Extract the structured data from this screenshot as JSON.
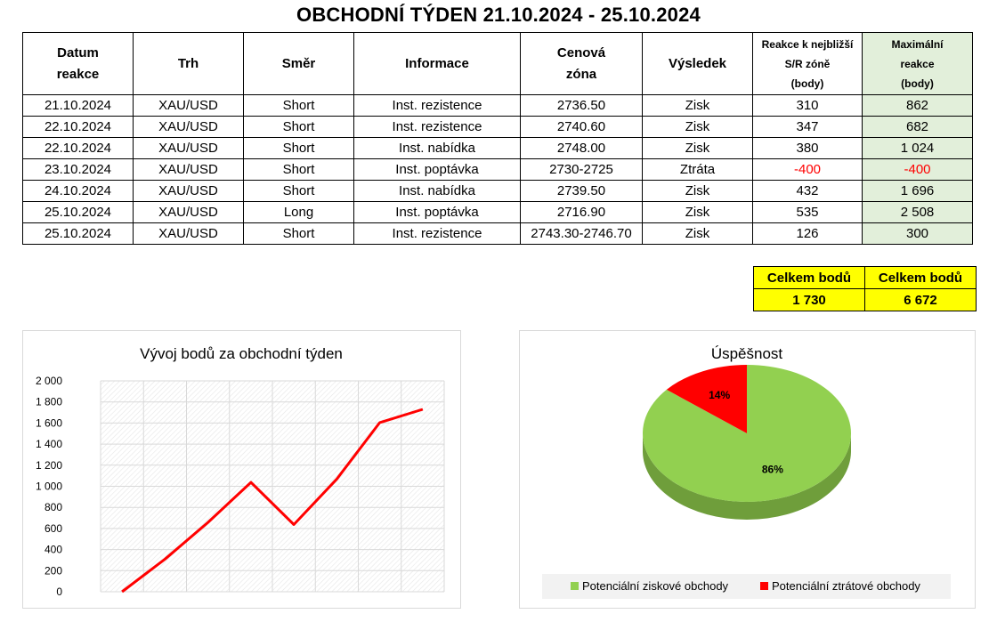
{
  "title": "OBCHODNÍ TÝDEN 21.10.2024 - 25.10.2024",
  "table": {
    "headers": {
      "date_1": "Datum",
      "date_2": "reakce",
      "market": "Trh",
      "direction": "Směr",
      "info": "Informace",
      "zone_1": "Cenová",
      "zone_2": "zóna",
      "result": "Výsledek",
      "reaction_1": "Reakce k nejbližší",
      "reaction_2": "S/R zóně",
      "reaction_3": "(body)",
      "max_1": "Maximální",
      "max_2": "reakce",
      "max_3": "(body)"
    },
    "rows": [
      {
        "date": "21.10.2024",
        "market": "XAU/USD",
        "direction": "Short",
        "info": "Inst. rezistence",
        "zone": "2736.50",
        "result": "Zisk",
        "reaction": "310",
        "max": "862"
      },
      {
        "date": "22.10.2024",
        "market": "XAU/USD",
        "direction": "Short",
        "info": "Inst. rezistence",
        "zone": "2740.60",
        "result": "Zisk",
        "reaction": "347",
        "max": "682"
      },
      {
        "date": "22.10.2024",
        "market": "XAU/USD",
        "direction": "Short",
        "info": "Inst. nabídka",
        "zone": "2748.00",
        "result": "Zisk",
        "reaction": "380",
        "max": "1 024"
      },
      {
        "date": "23.10.2024",
        "market": "XAU/USD",
        "direction": "Short",
        "info": "Inst. poptávka",
        "zone": "2730-2725",
        "result": "Ztráta",
        "reaction": "-400",
        "max": "-400"
      },
      {
        "date": "24.10.2024",
        "market": "XAU/USD",
        "direction": "Short",
        "info": "Inst. nabídka",
        "zone": "2739.50",
        "result": "Zisk",
        "reaction": "432",
        "max": "1 696"
      },
      {
        "date": "25.10.2024",
        "market": "XAU/USD",
        "direction": "Long",
        "info": "Inst. poptávka",
        "zone": "2716.90",
        "result": "Zisk",
        "reaction": "535",
        "max": "2 508"
      },
      {
        "date": "25.10.2024",
        "market": "XAU/USD",
        "direction": "Short",
        "info": "Inst. rezistence",
        "zone": "2743.30-2746.70",
        "result": "Zisk",
        "reaction": "126",
        "max": "300"
      }
    ]
  },
  "totals": {
    "label_1": "Celkem bodů",
    "value_1": "1 730",
    "label_2": "Celkem bodů",
    "value_2": "6 672"
  },
  "colors": {
    "line": "#ff0000",
    "pie_profit": "#92d050",
    "pie_loss": "#ff0000",
    "negative_text": "#ff0000",
    "max_column_fill": "#e2efda",
    "totals_fill": "#ffff00"
  },
  "chart_data": [
    {
      "type": "line",
      "title": "Vývoj bodů za obchodní týden",
      "x": [
        0,
        1,
        2,
        3,
        4,
        5,
        6,
        7
      ],
      "y": [
        0,
        310,
        657,
        1037,
        637,
        1069,
        1604,
        1730
      ],
      "ylim": [
        0,
        2000
      ],
      "yticks": [
        0,
        200,
        400,
        600,
        800,
        1000,
        1200,
        1400,
        1600,
        1800,
        2000
      ],
      "ytick_labels": [
        "0",
        "200",
        "400",
        "600",
        "800",
        "1 000",
        "1 200",
        "1 400",
        "1 600",
        "1 800",
        "2 000"
      ],
      "grid": true,
      "xlabel": "",
      "ylabel": ""
    },
    {
      "type": "pie",
      "title": "Úspěšnost",
      "categories": [
        "Potenciální ziskové obchody",
        "Potenciální ztrátové obchody"
      ],
      "values": [
        86,
        14
      ],
      "labels": [
        "86%",
        "14%"
      ],
      "legend": "bottom"
    }
  ]
}
